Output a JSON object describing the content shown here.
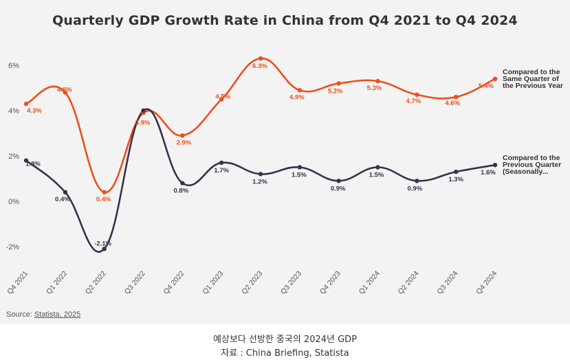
{
  "chart_data": {
    "type": "line",
    "title": "Quarterly GDP Growth Rate in China from Q4 2021 to Q4 2024",
    "categories": [
      "Q4 2021",
      "Q1 2022",
      "Q2 2022",
      "Q3 2022",
      "Q4 2022",
      "Q1 2023",
      "Q2 2023",
      "Q3 2023",
      "Q4 2023",
      "Q1 2024",
      "Q2 2024",
      "Q3 2024",
      "Q4 2024"
    ],
    "ylim": [
      -3,
      7
    ],
    "yticks": [
      -2,
      0,
      2,
      4,
      6
    ],
    "ytick_labels": [
      "-2%",
      "0%",
      "2%",
      "4%",
      "6%"
    ],
    "xlabel": "",
    "ylabel": "",
    "grid": false,
    "series": [
      {
        "name": "Compared to the Same Quarter of the Previous Year",
        "legend_lines": [
          "Compared to the",
          "Same Quarter of",
          "the Previous Year"
        ],
        "color": "#f04e1a",
        "values": [
          4.3,
          4.8,
          0.4,
          3.9,
          2.9,
          4.5,
          6.3,
          4.9,
          5.2,
          5.3,
          4.7,
          4.6,
          5.4
        ],
        "labels": [
          "4.3%",
          "4.8%",
          "0.4%",
          "3.9%",
          "2.9%",
          "4.5%",
          "6.3%",
          "4.9%",
          "5.2%",
          "5.3%",
          "4.7%",
          "4.6%",
          "5.4%"
        ]
      },
      {
        "name": "Compared to the Previous Quarter (Seasonally...",
        "legend_lines": [
          "Compared to the",
          "Previous Quarter",
          "(Seasonally..."
        ],
        "color": "#3b3049",
        "values": [
          1.8,
          0.4,
          -2.1,
          4.0,
          0.8,
          1.7,
          1.2,
          1.5,
          0.9,
          1.5,
          0.9,
          1.3,
          1.6
        ],
        "labels": [
          "1.8%",
          "0.4%",
          "-2.1%",
          "",
          "0.8%",
          "1.7%",
          "1.2%",
          "1.5%",
          "0.9%",
          "1.5%",
          "0.9%",
          "1.3%",
          "1.6%"
        ]
      }
    ]
  },
  "source": {
    "prefix": "Source: ",
    "link": "Statista, 2025"
  },
  "caption": {
    "line1": "예상보다 선방한 중국의 2024년 GDP",
    "line2": "자료 : China Briefing, Statista"
  }
}
